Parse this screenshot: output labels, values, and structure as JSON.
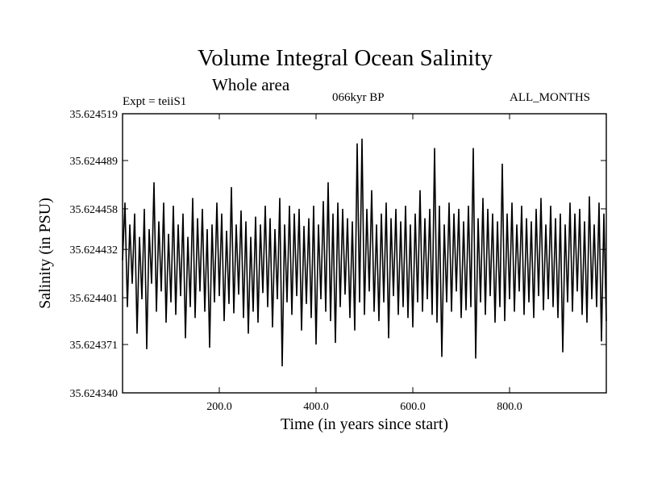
{
  "header": {
    "title": "Volume Integral Ocean Salinity",
    "subtitle": "Whole area",
    "experiment": "Expt = teiiS1",
    "period": "066kyr BP",
    "months": "ALL_MONTHS"
  },
  "chart_data": {
    "type": "line",
    "title": "Volume Integral Ocean Salinity",
    "subtitle": "Whole area",
    "xlabel": "Time (in years since start)",
    "ylabel": "Salinity (in PSU)",
    "xlim": [
      0,
      1000
    ],
    "ylim": [
      35.62434,
      35.624519
    ],
    "x_ticks": [
      {
        "value": 200,
        "label": "200.0"
      },
      {
        "value": 400,
        "label": "400.0"
      },
      {
        "value": 600,
        "label": "600.0"
      },
      {
        "value": 800,
        "label": "800.0"
      }
    ],
    "y_ticks": [
      {
        "value": 35.62434,
        "label": "35.624340"
      },
      {
        "value": 35.624371,
        "label": "35.624371"
      },
      {
        "value": 35.624401,
        "label": "35.624401"
      },
      {
        "value": 35.624432,
        "label": "35.624432"
      },
      {
        "value": 35.624458,
        "label": "35.624458"
      },
      {
        "value": 35.624489,
        "label": "35.624489"
      },
      {
        "value": 35.624519,
        "label": "35.624519"
      }
    ],
    "grid": false,
    "line_color": "#000000",
    "series": [
      {
        "values": [
          [
            0,
            35.624425
          ],
          [
            5,
            35.624462
          ],
          [
            10,
            35.624395
          ],
          [
            15,
            35.624448
          ],
          [
            20,
            35.62441
          ],
          [
            25,
            35.624455
          ],
          [
            30,
            35.624378
          ],
          [
            35,
            35.62444
          ],
          [
            40,
            35.6244
          ],
          [
            45,
            35.624458
          ],
          [
            50,
            35.624368
          ],
          [
            55,
            35.624445
          ],
          [
            60,
            35.62441
          ],
          [
            65,
            35.624475
          ],
          [
            70,
            35.624392
          ],
          [
            75,
            35.62445
          ],
          [
            80,
            35.624405
          ],
          [
            85,
            35.624462
          ],
          [
            90,
            35.624385
          ],
          [
            95,
            35.624442
          ],
          [
            100,
            35.624398
          ],
          [
            105,
            35.62446
          ],
          [
            110,
            35.62439
          ],
          [
            115,
            35.624448
          ],
          [
            120,
            35.624402
          ],
          [
            125,
            35.624455
          ],
          [
            130,
            35.624375
          ],
          [
            135,
            35.62444
          ],
          [
            140,
            35.624395
          ],
          [
            145,
            35.624465
          ],
          [
            150,
            35.624388
          ],
          [
            155,
            35.624452
          ],
          [
            160,
            35.624405
          ],
          [
            165,
            35.624458
          ],
          [
            170,
            35.624392
          ],
          [
            175,
            35.624445
          ],
          [
            180,
            35.624369
          ],
          [
            185,
            35.624448
          ],
          [
            190,
            35.624398
          ],
          [
            195,
            35.624462
          ],
          [
            200,
            35.624402
          ],
          [
            205,
            35.624455
          ],
          [
            210,
            35.624386
          ],
          [
            215,
            35.624444
          ],
          [
            220,
            35.624397
          ],
          [
            225,
            35.624472
          ],
          [
            230,
            35.624391
          ],
          [
            235,
            35.624448
          ],
          [
            240,
            35.624403
          ],
          [
            245,
            35.624457
          ],
          [
            250,
            35.624388
          ],
          [
            255,
            35.62445
          ],
          [
            260,
            35.624378
          ],
          [
            265,
            35.62444
          ],
          [
            270,
            35.624392
          ],
          [
            275,
            35.624453
          ],
          [
            280,
            35.624385
          ],
          [
            285,
            35.624448
          ],
          [
            290,
            35.624404
          ],
          [
            295,
            35.62446
          ],
          [
            300,
            35.624395
          ],
          [
            305,
            35.624452
          ],
          [
            310,
            35.624382
          ],
          [
            315,
            35.624445
          ],
          [
            320,
            35.6244
          ],
          [
            325,
            35.624465
          ],
          [
            330,
            35.624357
          ],
          [
            335,
            35.624448
          ],
          [
            340,
            35.624398
          ],
          [
            345,
            35.62446
          ],
          [
            350,
            35.62439
          ],
          [
            355,
            35.624455
          ],
          [
            360,
            35.624402
          ],
          [
            365,
            35.624458
          ],
          [
            370,
            35.62438
          ],
          [
            375,
            35.624447
          ],
          [
            380,
            35.624397
          ],
          [
            385,
            35.624452
          ],
          [
            390,
            35.624388
          ],
          [
            395,
            35.62446
          ],
          [
            400,
            35.624371
          ],
          [
            405,
            35.624448
          ],
          [
            410,
            35.6244
          ],
          [
            415,
            35.624463
          ],
          [
            420,
            35.624392
          ],
          [
            425,
            35.624475
          ],
          [
            430,
            35.624386
          ],
          [
            435,
            35.624455
          ],
          [
            440,
            35.624372
          ],
          [
            445,
            35.624462
          ],
          [
            450,
            35.624395
          ],
          [
            455,
            35.624458
          ],
          [
            460,
            35.624403
          ],
          [
            465,
            35.624452
          ],
          [
            470,
            35.624388
          ],
          [
            475,
            35.62445
          ],
          [
            480,
            35.62438
          ],
          [
            485,
            35.6245
          ],
          [
            490,
            35.624398
          ],
          [
            495,
            35.624503
          ],
          [
            500,
            35.62439
          ],
          [
            505,
            35.624458
          ],
          [
            510,
            35.624405
          ],
          [
            515,
            35.62447
          ],
          [
            520,
            35.624392
          ],
          [
            525,
            35.624448
          ],
          [
            530,
            35.624386
          ],
          [
            535,
            35.624455
          ],
          [
            540,
            35.624398
          ],
          [
            545,
            35.624462
          ],
          [
            550,
            35.624375
          ],
          [
            555,
            35.624452
          ],
          [
            560,
            35.624402
          ],
          [
            565,
            35.624458
          ],
          [
            570,
            35.62439
          ],
          [
            575,
            35.62445
          ],
          [
            580,
            35.624395
          ],
          [
            585,
            35.62446
          ],
          [
            590,
            35.624388
          ],
          [
            595,
            35.624448
          ],
          [
            600,
            35.624382
          ],
          [
            605,
            35.624455
          ],
          [
            610,
            35.624398
          ],
          [
            615,
            35.62447
          ],
          [
            620,
            35.624392
          ],
          [
            625,
            35.624452
          ],
          [
            630,
            35.6244
          ],
          [
            635,
            35.624458
          ],
          [
            640,
            35.62439
          ],
          [
            645,
            35.624497
          ],
          [
            650,
            35.624385
          ],
          [
            655,
            35.62446
          ],
          [
            660,
            35.624363
          ],
          [
            665,
            35.624448
          ],
          [
            670,
            35.624398
          ],
          [
            675,
            35.624462
          ],
          [
            680,
            35.624392
          ],
          [
            685,
            35.624455
          ],
          [
            690,
            35.624405
          ],
          [
            695,
            35.624458
          ],
          [
            700,
            35.624388
          ],
          [
            705,
            35.62445
          ],
          [
            710,
            35.624393
          ],
          [
            715,
            35.62446
          ],
          [
            720,
            35.624395
          ],
          [
            725,
            35.624497
          ],
          [
            730,
            35.624362
          ],
          [
            735,
            35.624452
          ],
          [
            740,
            35.624398
          ],
          [
            745,
            35.624465
          ],
          [
            750,
            35.62439
          ],
          [
            755,
            35.624458
          ],
          [
            760,
            35.624402
          ],
          [
            765,
            35.624455
          ],
          [
            770,
            35.624385
          ],
          [
            775,
            35.62445
          ],
          [
            780,
            35.624395
          ],
          [
            785,
            35.624487
          ],
          [
            790,
            35.624386
          ],
          [
            795,
            35.624455
          ],
          [
            800,
            35.6244
          ],
          [
            805,
            35.624462
          ],
          [
            810,
            35.624392
          ],
          [
            815,
            35.624448
          ],
          [
            820,
            35.624405
          ],
          [
            825,
            35.62446
          ],
          [
            830,
            35.62439
          ],
          [
            835,
            35.624452
          ],
          [
            840,
            35.624398
          ],
          [
            845,
            35.62445
          ],
          [
            850,
            35.624388
          ],
          [
            855,
            35.624458
          ],
          [
            860,
            35.624402
          ],
          [
            865,
            35.624465
          ],
          [
            870,
            35.624393
          ],
          [
            875,
            35.624448
          ],
          [
            880,
            35.6244
          ],
          [
            885,
            35.62446
          ],
          [
            890,
            35.624395
          ],
          [
            895,
            35.624452
          ],
          [
            900,
            35.624388
          ],
          [
            905,
            35.624455
          ],
          [
            910,
            35.624366
          ],
          [
            915,
            35.624448
          ],
          [
            920,
            35.624398
          ],
          [
            925,
            35.624462
          ],
          [
            930,
            35.624392
          ],
          [
            935,
            35.624455
          ],
          [
            940,
            35.624405
          ],
          [
            945,
            35.624458
          ],
          [
            950,
            35.62439
          ],
          [
            955,
            35.62445
          ],
          [
            960,
            35.624385
          ],
          [
            965,
            35.624466
          ],
          [
            970,
            35.6244
          ],
          [
            975,
            35.624448
          ],
          [
            980,
            35.624395
          ],
          [
            985,
            35.624462
          ],
          [
            990,
            35.624373
          ],
          [
            995,
            35.624455
          ],
          [
            1000,
            35.624386
          ]
        ]
      }
    ]
  }
}
